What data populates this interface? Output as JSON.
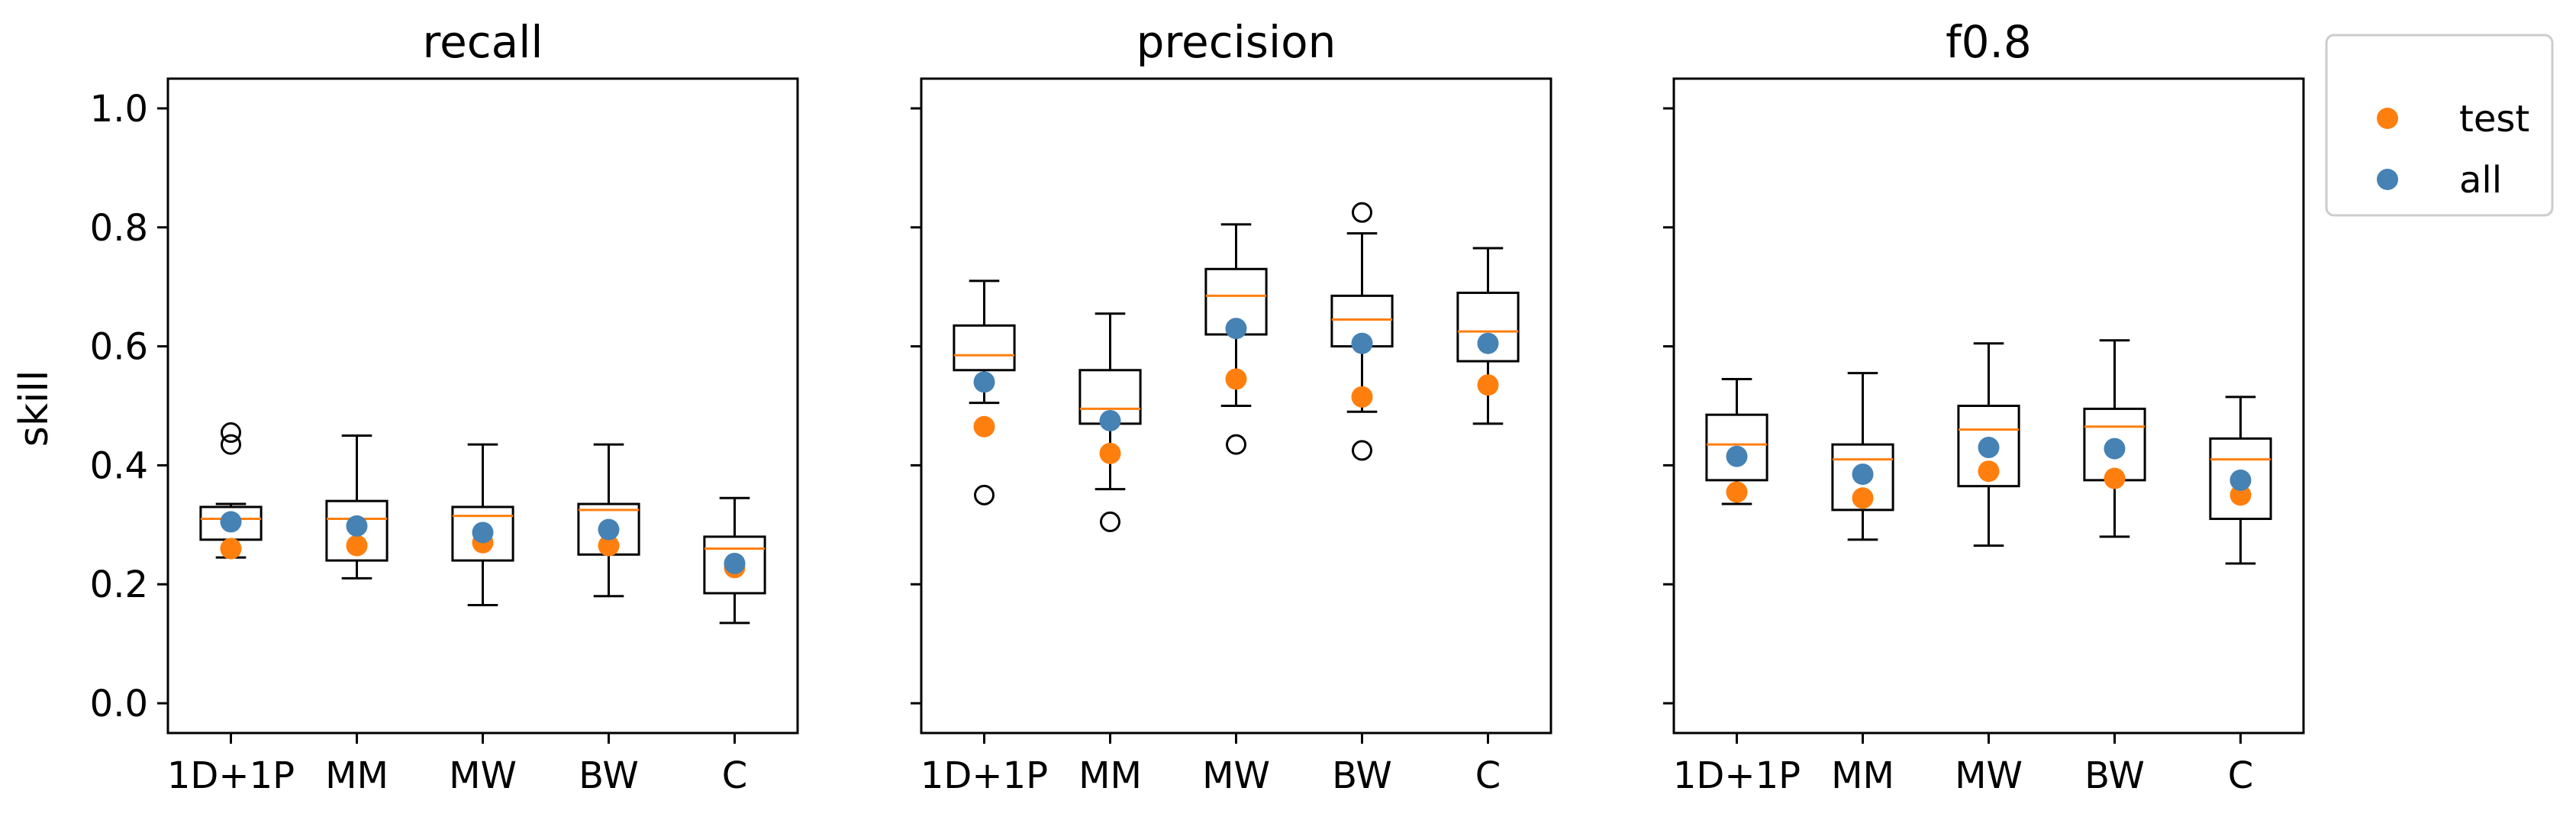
{
  "chart_data": {
    "type": "boxplot",
    "ylabel": "skill",
    "ylim": [
      -0.05,
      1.05
    ],
    "yticks": [
      0.0,
      0.2,
      0.4,
      0.6,
      0.8,
      1.0
    ],
    "yticklabels": [
      "0.0",
      "0.2",
      "0.4",
      "0.6",
      "0.8",
      "1.0"
    ],
    "categories": [
      "1D+1P",
      "MM",
      "MW",
      "BW",
      "C"
    ],
    "legend": {
      "placement": "outside-top-right",
      "entries": [
        {
          "label": "test",
          "color": "#ff7f0e"
        },
        {
          "label": "all",
          "color": "#4682b4"
        }
      ]
    },
    "colors": {
      "median": "#ff7f0e",
      "test": "#ff7f0e",
      "all": "#4682b4",
      "box": "#000000"
    },
    "panels": [
      {
        "title": "recall",
        "boxes": [
          {
            "q1": 0.275,
            "median": 0.31,
            "q3": 0.33,
            "whislo": 0.245,
            "whishi": 0.335,
            "fliers": [
              0.435,
              0.455
            ]
          },
          {
            "q1": 0.24,
            "median": 0.31,
            "q3": 0.34,
            "whislo": 0.21,
            "whishi": 0.45,
            "fliers": []
          },
          {
            "q1": 0.24,
            "median": 0.315,
            "q3": 0.33,
            "whislo": 0.165,
            "whishi": 0.435,
            "fliers": []
          },
          {
            "q1": 0.25,
            "median": 0.325,
            "q3": 0.335,
            "whislo": 0.18,
            "whishi": 0.435,
            "fliers": []
          },
          {
            "q1": 0.185,
            "median": 0.26,
            "q3": 0.28,
            "whislo": 0.135,
            "whishi": 0.345,
            "fliers": []
          }
        ],
        "test": [
          0.26,
          0.265,
          0.27,
          0.265,
          0.228
        ],
        "all": [
          0.305,
          0.298,
          0.287,
          0.292,
          0.235
        ]
      },
      {
        "title": "precision",
        "boxes": [
          {
            "q1": 0.56,
            "median": 0.585,
            "q3": 0.635,
            "whislo": 0.505,
            "whishi": 0.71,
            "fliers": [
              0.35
            ]
          },
          {
            "q1": 0.47,
            "median": 0.495,
            "q3": 0.56,
            "whislo": 0.36,
            "whishi": 0.655,
            "fliers": [
              0.305
            ]
          },
          {
            "q1": 0.62,
            "median": 0.685,
            "q3": 0.73,
            "whislo": 0.5,
            "whishi": 0.805,
            "fliers": [
              0.435
            ]
          },
          {
            "q1": 0.6,
            "median": 0.645,
            "q3": 0.685,
            "whislo": 0.49,
            "whishi": 0.79,
            "fliers": [
              0.825,
              0.425
            ]
          },
          {
            "q1": 0.575,
            "median": 0.625,
            "q3": 0.69,
            "whislo": 0.47,
            "whishi": 0.765,
            "fliers": []
          }
        ],
        "test": [
          0.465,
          0.42,
          0.545,
          0.515,
          0.535
        ],
        "all": [
          0.54,
          0.475,
          0.63,
          0.605,
          0.605
        ]
      },
      {
        "title": "f0.8",
        "boxes": [
          {
            "q1": 0.375,
            "median": 0.435,
            "q3": 0.485,
            "whislo": 0.335,
            "whishi": 0.545,
            "fliers": []
          },
          {
            "q1": 0.325,
            "median": 0.41,
            "q3": 0.435,
            "whislo": 0.275,
            "whishi": 0.555,
            "fliers": []
          },
          {
            "q1": 0.365,
            "median": 0.46,
            "q3": 0.5,
            "whislo": 0.265,
            "whishi": 0.605,
            "fliers": []
          },
          {
            "q1": 0.375,
            "median": 0.465,
            "q3": 0.495,
            "whislo": 0.28,
            "whishi": 0.61,
            "fliers": []
          },
          {
            "q1": 0.31,
            "median": 0.41,
            "q3": 0.445,
            "whislo": 0.235,
            "whishi": 0.515,
            "fliers": []
          }
        ],
        "test": [
          0.355,
          0.345,
          0.39,
          0.378,
          0.35
        ],
        "all": [
          0.415,
          0.385,
          0.43,
          0.428,
          0.375
        ]
      }
    ]
  }
}
